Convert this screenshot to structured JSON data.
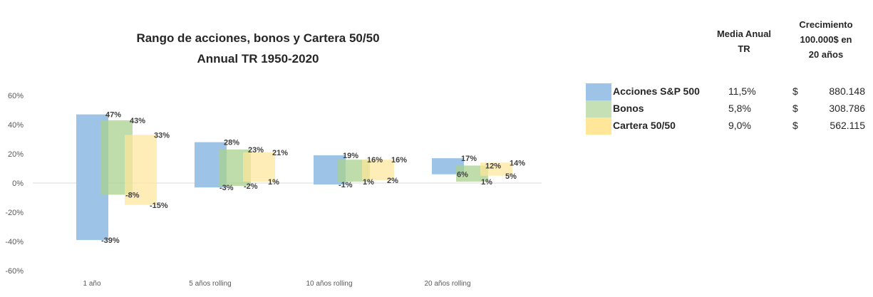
{
  "chart_data": {
    "type": "bar",
    "title": [
      "Rango de acciones, bonos y Cartera 50/50",
      "Annual TR 1950-2020"
    ],
    "categories": [
      "1 año",
      "5 años rolling",
      "10 años rolling",
      "20 años rolling"
    ],
    "yticks": [
      "60%",
      "40%",
      "20%",
      "0%",
      "-20%",
      "-40%",
      "-60%"
    ],
    "ylim": [
      -60,
      60
    ],
    "series": [
      {
        "name": "Acciones S&P 500",
        "color": "#9dc3e6",
        "high": [
          47,
          28,
          19,
          17
        ],
        "low": [
          -39,
          -3,
          -1,
          6
        ],
        "high_labels": [
          "47%",
          "28%",
          "19%",
          "17%"
        ],
        "low_labels": [
          "-39%",
          "-3%",
          "-1%",
          "6%"
        ]
      },
      {
        "name": "Bonos",
        "color": "#a9d18e",
        "high": [
          43,
          23,
          16,
          12
        ],
        "low": [
          -8,
          -2,
          1,
          1
        ],
        "high_labels": [
          "43%",
          "23%",
          "16%",
          "12%"
        ],
        "low_labels": [
          "-8%",
          "-2%",
          "1%",
          "1%"
        ]
      },
      {
        "name": "Cartera 50/50",
        "color": "#ffe699",
        "high": [
          33,
          21,
          16,
          14
        ],
        "low": [
          -15,
          1,
          2,
          5
        ],
        "high_labels": [
          "33%",
          "21%",
          "16%",
          "14%"
        ],
        "low_labels": [
          "-15%",
          "1%",
          "2%",
          "5%"
        ]
      }
    ]
  },
  "table": {
    "header_mean": [
      "Media Anual",
      "TR"
    ],
    "header_growth": [
      "Crecimiento",
      "100.000$ en",
      "20 años"
    ],
    "rows": [
      {
        "name": "Acciones S&P 500",
        "mean": "11,5%",
        "currency": "$",
        "value": "880.148",
        "color": "#9dc3e6"
      },
      {
        "name": "Bonos",
        "mean": "5,8%",
        "currency": "$",
        "value": "308.786",
        "color": "#a9d18e"
      },
      {
        "name": "Cartera 50/50",
        "mean": "9,0%",
        "currency": "$",
        "value": "562.115",
        "color": "#ffe699"
      }
    ]
  }
}
